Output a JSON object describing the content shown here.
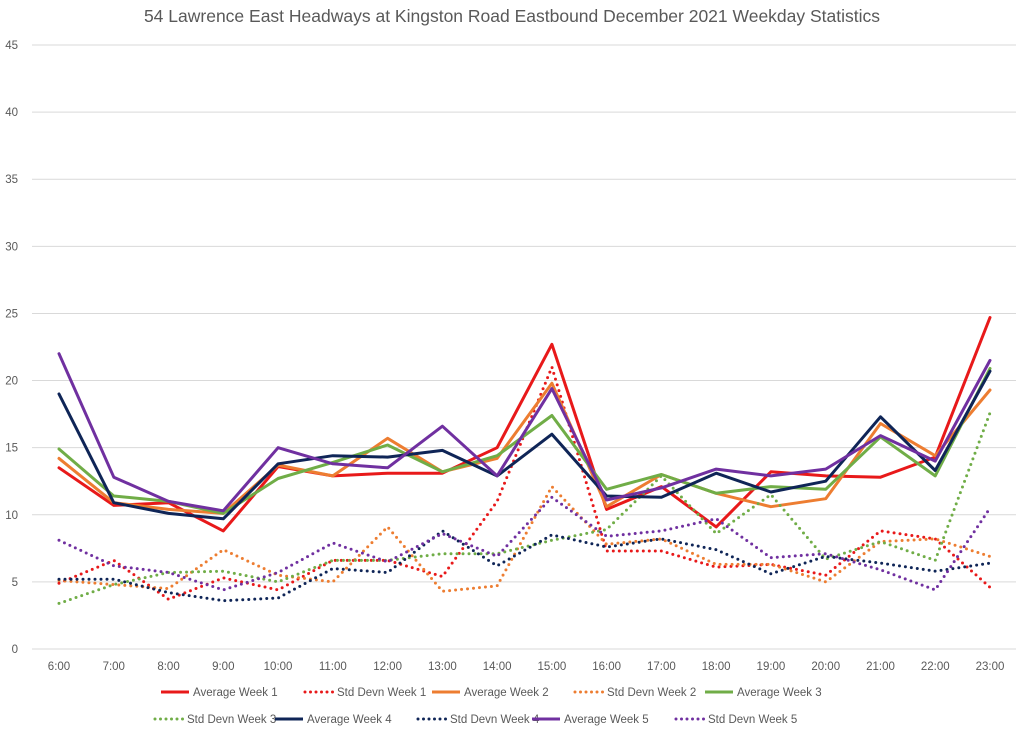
{
  "chart_data": {
    "type": "line",
    "title": "54 Lawrence East Headways at Kingston Road Eastbound December 2021 Weekday Statistics",
    "xlabel": "",
    "ylabel": "",
    "ylim": [
      0,
      45
    ],
    "yticks": [
      0,
      5,
      10,
      15,
      20,
      25,
      30,
      35,
      40,
      45
    ],
    "grid": true,
    "legend_position": "bottom",
    "categories": [
      "6:00",
      "7:00",
      "8:00",
      "9:00",
      "10:00",
      "11:00",
      "12:00",
      "13:00",
      "14:00",
      "15:00",
      "16:00",
      "17:00",
      "18:00",
      "19:00",
      "20:00",
      "21:00",
      "22:00",
      "23:00"
    ],
    "series": [
      {
        "name": "Average Week 1",
        "color": "#e8191a",
        "style": "solid",
        "values": [
          13.5,
          10.7,
          10.9,
          8.8,
          13.6,
          12.9,
          13.1,
          13.1,
          15.0,
          22.7,
          10.4,
          12.1,
          9.1,
          13.2,
          12.9,
          12.8,
          14.3,
          24.7
        ]
      },
      {
        "name": "Std Devn Week 1",
        "color": "#e8191a",
        "style": "dotted",
        "values": [
          4.9,
          6.6,
          3.7,
          5.3,
          4.4,
          6.6,
          6.6,
          5.4,
          11.0,
          21.0,
          7.3,
          7.3,
          6.1,
          6.3,
          5.5,
          8.8,
          8.2,
          4.6
        ]
      },
      {
        "name": "Average Week 2",
        "color": "#ed7d31",
        "style": "solid",
        "values": [
          14.2,
          10.9,
          10.4,
          10.1,
          13.7,
          12.9,
          15.7,
          13.2,
          14.2,
          19.8,
          10.6,
          13.0,
          11.6,
          10.6,
          11.2,
          16.8,
          14.4,
          19.3
        ]
      },
      {
        "name": "Std Devn Week 2",
        "color": "#ed7d31",
        "style": "dotted",
        "values": [
          5.1,
          4.8,
          4.5,
          7.4,
          5.5,
          5.0,
          9.1,
          4.3,
          4.7,
          12.1,
          7.8,
          8.2,
          6.3,
          6.3,
          5.0,
          8.0,
          8.2,
          6.9
        ]
      },
      {
        "name": "Average Week 3",
        "color": "#70ad47",
        "style": "solid",
        "values": [
          14.9,
          11.4,
          11.0,
          10.1,
          12.7,
          13.9,
          15.2,
          13.2,
          14.4,
          17.4,
          11.9,
          13.0,
          11.6,
          12.1,
          11.9,
          15.8,
          12.9,
          20.9
        ]
      },
      {
        "name": "Std Devn Week 3",
        "color": "#70ad47",
        "style": "dotted",
        "values": [
          3.4,
          4.8,
          5.7,
          5.8,
          5.0,
          6.6,
          6.6,
          7.1,
          7.1,
          8.1,
          8.9,
          12.9,
          8.6,
          11.5,
          6.7,
          8.0,
          6.6,
          17.6
        ]
      },
      {
        "name": "Average Week 4",
        "color": "#0f2557",
        "style": "solid",
        "values": [
          19.0,
          10.9,
          10.1,
          9.7,
          13.8,
          14.4,
          14.3,
          14.8,
          12.9,
          16.0,
          11.4,
          11.3,
          13.1,
          11.7,
          12.5,
          17.3,
          13.3,
          20.7
        ]
      },
      {
        "name": "Std Devn Week 4",
        "color": "#0f2557",
        "style": "dotted",
        "values": [
          5.2,
          5.2,
          4.2,
          3.6,
          3.8,
          6.0,
          5.7,
          8.8,
          6.2,
          8.5,
          7.6,
          8.2,
          7.4,
          5.6,
          6.9,
          6.4,
          5.8,
          6.4
        ]
      },
      {
        "name": "Average Week 5",
        "color": "#7030a0",
        "style": "solid",
        "values": [
          22.0,
          12.8,
          11.0,
          10.3,
          15.0,
          13.8,
          13.5,
          16.6,
          12.9,
          19.4,
          11.1,
          12.0,
          13.4,
          12.9,
          13.4,
          15.9,
          14.0,
          21.5
        ]
      },
      {
        "name": "Std Devn Week 5",
        "color": "#7030a0",
        "style": "dotted",
        "values": [
          8.1,
          6.2,
          5.7,
          4.4,
          5.7,
          7.9,
          6.5,
          8.6,
          6.9,
          11.3,
          8.4,
          8.8,
          9.7,
          6.8,
          7.1,
          5.9,
          4.4,
          10.5
        ]
      }
    ]
  }
}
